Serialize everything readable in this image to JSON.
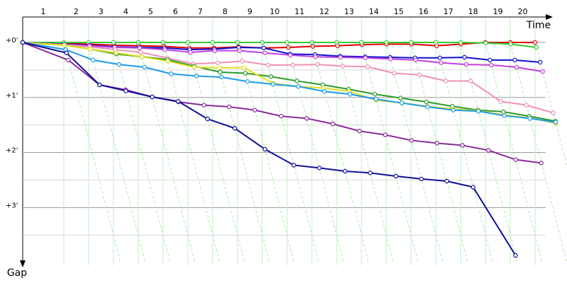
{
  "chart_data": {
    "type": "line",
    "x_label": "Time",
    "y_label": "Gap",
    "xlim": [
      0,
      38
    ],
    "xticks": [
      {
        "value": 2.9,
        "label": "1"
      },
      {
        "value": 4.65,
        "label": "2"
      },
      {
        "value": 6.4,
        "label": "3"
      },
      {
        "value": 8.15,
        "label": "4"
      },
      {
        "value": 9.9,
        "label": "5"
      },
      {
        "value": 11.65,
        "label": "6"
      },
      {
        "value": 13.4,
        "label": "7"
      },
      {
        "value": 15.15,
        "label": "8"
      },
      {
        "value": 16.9,
        "label": "9"
      },
      {
        "value": 18.65,
        "label": "10"
      },
      {
        "value": 20.4,
        "label": "11"
      },
      {
        "value": 22.15,
        "label": "12"
      },
      {
        "value": 23.9,
        "label": "13"
      },
      {
        "value": 25.65,
        "label": "14"
      },
      {
        "value": 27.4,
        "label": "15"
      },
      {
        "value": 29.15,
        "label": "16"
      },
      {
        "value": 30.9,
        "label": "17"
      },
      {
        "value": 32.65,
        "label": "18"
      },
      {
        "value": 34.4,
        "label": "19"
      },
      {
        "value": 36.15,
        "label": "20"
      }
    ],
    "ylim": [
      -0.45,
      4.05
    ],
    "yticks": [
      {
        "value": 0,
        "label": "+0'"
      },
      {
        "value": 1,
        "label": "+1'"
      },
      {
        "value": 2,
        "label": "+2'"
      },
      {
        "value": 3,
        "label": "+3'"
      }
    ],
    "minor_yticks": [
      0.5,
      1.5,
      2.5,
      3.5
    ],
    "grid": true,
    "series": [
      {
        "color": "#e00000",
        "values": [
          0,
          0.02,
          0.03,
          0.05,
          0.06,
          0.07,
          0.1,
          0.1,
          0.08,
          0.1,
          0.09,
          0.07,
          0.06,
          0.04,
          0.03,
          0.03,
          0.06,
          0.03,
          0,
          0,
          0
        ]
      },
      {
        "color": "#33cc33",
        "values": [
          0,
          0,
          0,
          0,
          0,
          0,
          0,
          0,
          0,
          0,
          0,
          0,
          0,
          0,
          0,
          0,
          0,
          0,
          0.01,
          0.03,
          0.09
        ]
      },
      {
        "color": "#1010d0",
        "values": [
          0,
          0.03,
          0.05,
          0.08,
          0.09,
          0.1,
          0.13,
          0.12,
          0.09,
          0.1,
          0.21,
          0.22,
          0.25,
          0.26,
          0.27,
          0.28,
          0.28,
          0.27,
          0.32,
          0.32,
          0.36
        ]
      },
      {
        "color": "#c040e0",
        "values": [
          0,
          0.04,
          0.06,
          0.09,
          0.1,
          0.13,
          0.18,
          0.15,
          0.15,
          0.19,
          0.23,
          0.26,
          0.27,
          0.28,
          0.3,
          0.32,
          0.37,
          0.4,
          0.41,
          0.45,
          0.53
        ]
      },
      {
        "color": "#f290b4",
        "values": [
          0,
          0.04,
          0.08,
          0.13,
          0.18,
          0.28,
          0.39,
          0.37,
          0.34,
          0.41,
          0.41,
          0.4,
          0.43,
          0.44,
          0.56,
          0.59,
          0.7,
          0.7,
          1.07,
          1.14,
          1.28
        ]
      },
      {
        "color": "#2a9a2a",
        "values": [
          0,
          0.05,
          0.12,
          0.21,
          0.26,
          0.31,
          0.43,
          0.54,
          0.56,
          0.62,
          0.7,
          0.77,
          0.85,
          0.94,
          1.01,
          1.08,
          1.16,
          1.23,
          1.26,
          1.34,
          1.43
        ]
      },
      {
        "color": "#dede20",
        "values": [
          0,
          0.05,
          0.12,
          0.19,
          0.26,
          0.34,
          0.45,
          0.46,
          0.46,
          0.74,
          0.8,
          0.83,
          0.89,
          1.05,
          1.1,
          1.16,
          1.21,
          1.24,
          1.32,
          1.37,
          1.47
        ]
      },
      {
        "color": "#1e9be8",
        "values": [
          0,
          0.13,
          0.32,
          0.4,
          0.45,
          0.57,
          0.61,
          0.63,
          0.71,
          0.76,
          0.8,
          0.89,
          0.94,
          1.03,
          1.1,
          1.17,
          1.23,
          1.25,
          1.33,
          1.38,
          1.45
        ]
      },
      {
        "color": "#8a2a9a",
        "values": [
          0,
          0.32,
          0.77,
          0.86,
          0.99,
          1.08,
          1.14,
          1.17,
          1.23,
          1.34,
          1.38,
          1.48,
          1.61,
          1.68,
          1.78,
          1.83,
          1.87,
          1.96,
          2.13,
          2.19,
          null
        ]
      },
      {
        "color": "#101098",
        "values": [
          0,
          0.19,
          0.77,
          0.88,
          0.99,
          1.07,
          1.39,
          1.56,
          1.94,
          2.23,
          2.28,
          2.34,
          2.37,
          2.43,
          2.48,
          2.52,
          2.63,
          3.87,
          null,
          null,
          null
        ]
      }
    ]
  }
}
